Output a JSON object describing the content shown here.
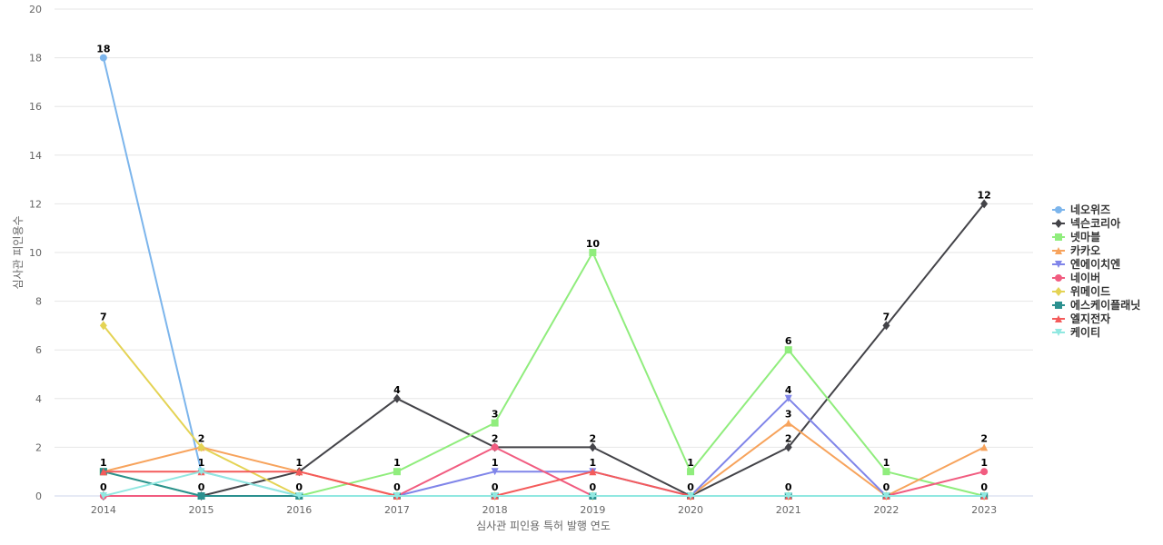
{
  "chart_data": {
    "type": "line",
    "title": "",
    "xlabel": "심사관 피인용 특허 발행 연도",
    "ylabel": "심사관 피인용수",
    "x": [
      "2014",
      "2015",
      "2016",
      "2017",
      "2018",
      "2019",
      "2020",
      "2021",
      "2022",
      "2023"
    ],
    "ylim": [
      0,
      20
    ],
    "yticks": [
      0,
      2,
      4,
      6,
      8,
      10,
      12,
      14,
      16,
      18,
      20
    ],
    "grid": true,
    "legend_position": "right",
    "series": [
      {
        "name": "네오위즈",
        "color": "#7cb5ec",
        "marker": "circle",
        "values": [
          18,
          1,
          0,
          0,
          0,
          0,
          0,
          0,
          0,
          0
        ]
      },
      {
        "name": "넥슨코리아",
        "color": "#434348",
        "marker": "diamond",
        "values": [
          0,
          0,
          1,
          4,
          2,
          2,
          0,
          2,
          7,
          12
        ]
      },
      {
        "name": "넷마블",
        "color": "#90ed7d",
        "marker": "square",
        "values": [
          1,
          0,
          0,
          1,
          3,
          10,
          1,
          6,
          1,
          0
        ]
      },
      {
        "name": "카카오",
        "color": "#f7a35c",
        "marker": "triangle",
        "values": [
          1,
          2,
          1,
          0,
          0,
          0,
          0,
          3,
          0,
          2
        ]
      },
      {
        "name": "엔에이치엔",
        "color": "#8085e9",
        "marker": "triangle-down",
        "values": [
          0,
          0,
          0,
          0,
          1,
          1,
          0,
          4,
          0,
          0
        ]
      },
      {
        "name": "네이버",
        "color": "#f15c80",
        "marker": "circle",
        "values": [
          0,
          0,
          0,
          0,
          2,
          0,
          0,
          0,
          0,
          1
        ]
      },
      {
        "name": "위메이드",
        "color": "#e4d354",
        "marker": "diamond",
        "values": [
          7,
          2,
          0,
          0,
          0,
          0,
          0,
          0,
          0,
          0
        ]
      },
      {
        "name": "에스케이플래닛",
        "color": "#2b908f",
        "marker": "square",
        "values": [
          1,
          0,
          0,
          0,
          0,
          0,
          0,
          0,
          0,
          0
        ]
      },
      {
        "name": "엘지전자",
        "color": "#f45b5b",
        "marker": "triangle",
        "values": [
          1,
          1,
          1,
          0,
          0,
          1,
          0,
          0,
          0,
          0
        ]
      },
      {
        "name": "케이티",
        "color": "#91e8e1",
        "marker": "triangle-down",
        "values": [
          0,
          1,
          0,
          0,
          0,
          0,
          0,
          0,
          0,
          0
        ]
      }
    ],
    "data_labels": [
      {
        "x": "2014",
        "value": 18
      },
      {
        "x": "2014",
        "value": 7
      },
      {
        "x": "2014",
        "value": 1
      },
      {
        "x": "2014",
        "value": 0
      },
      {
        "x": "2015",
        "value": 2
      },
      {
        "x": "2015",
        "value": 1
      },
      {
        "x": "2015",
        "value": 0
      },
      {
        "x": "2016",
        "value": 1
      },
      {
        "x": "2016",
        "value": 0
      },
      {
        "x": "2017",
        "value": 4
      },
      {
        "x": "2017",
        "value": 1
      },
      {
        "x": "2017",
        "value": 0
      },
      {
        "x": "2018",
        "value": 3
      },
      {
        "x": "2018",
        "value": 2
      },
      {
        "x": "2018",
        "value": 1
      },
      {
        "x": "2018",
        "value": 0
      },
      {
        "x": "2019",
        "value": 10
      },
      {
        "x": "2019",
        "value": 2
      },
      {
        "x": "2019",
        "value": 1
      },
      {
        "x": "2019",
        "value": 0
      },
      {
        "x": "2020",
        "value": 1
      },
      {
        "x": "2020",
        "value": 0
      },
      {
        "x": "2021",
        "value": 6
      },
      {
        "x": "2021",
        "value": 4
      },
      {
        "x": "2021",
        "value": 3
      },
      {
        "x": "2021",
        "value": 2
      },
      {
        "x": "2021",
        "value": 0
      },
      {
        "x": "2022",
        "value": 7
      },
      {
        "x": "2022",
        "value": 1
      },
      {
        "x": "2022",
        "value": 0
      },
      {
        "x": "2023",
        "value": 12
      },
      {
        "x": "2023",
        "value": 2
      },
      {
        "x": "2023",
        "value": 1
      },
      {
        "x": "2023",
        "value": 0
      }
    ]
  }
}
